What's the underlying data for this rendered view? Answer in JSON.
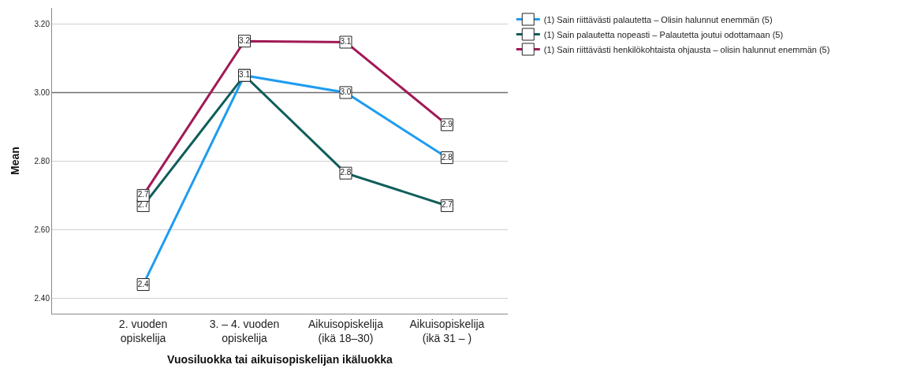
{
  "chart_data": {
    "type": "line",
    "xlabel": "Vuosiluokka tai aikuisopiskelijan ikäluokka",
    "ylabel": "Mean",
    "categories": [
      "2. vuoden\nopiskelija",
      "3. – 4. vuoden\nopiskelija",
      "Aikuisopiskelija\n(ikä 18–30)",
      "Aikuisopiskelija\n(ikä 31 – )"
    ],
    "series": [
      {
        "name": "(1) Sain riittävästi palautetta – Olisin halunnut enemmän (5)",
        "color": "#1e9cf0",
        "values": [
          2.44,
          3.05,
          3.0,
          2.81
        ],
        "value_labels": [
          "2.4",
          "3.1",
          "3.0",
          "2.8"
        ]
      },
      {
        "name": "(1) Sain palautetta nopeasti – Palautetta joutui odottamaan (5)",
        "color": "#0f5e5a",
        "values": [
          2.67,
          3.05,
          2.765,
          2.67
        ],
        "value_labels": [
          "2.7",
          null,
          "2.8",
          "2.7"
        ]
      },
      {
        "name": "(1) Sain riittävästi henkilökohtaista ohjausta – olisin halunnut enemmän (5)",
        "color": "#a11a55",
        "values": [
          2.7,
          3.15,
          3.147,
          2.906
        ],
        "value_labels": [
          "2.7",
          "3.2",
          "3.1",
          "2.9"
        ]
      }
    ],
    "ylim": [
      2.355,
      3.247
    ],
    "yticks": [
      {
        "value": 2.4,
        "label": "2.40"
      },
      {
        "value": 2.6,
        "label": "2.60"
      },
      {
        "value": 2.8,
        "label": "2.80"
      },
      {
        "value": 3.0,
        "label": "3.00"
      },
      {
        "value": 3.2,
        "label": "3.20"
      }
    ],
    "grid": "y",
    "legend": "top right",
    "marker": "square",
    "line_style": "solid",
    "ref_lines": [
      {
        "axis": "y",
        "value": 3.0,
        "color": "#6e6e6e"
      }
    ]
  }
}
